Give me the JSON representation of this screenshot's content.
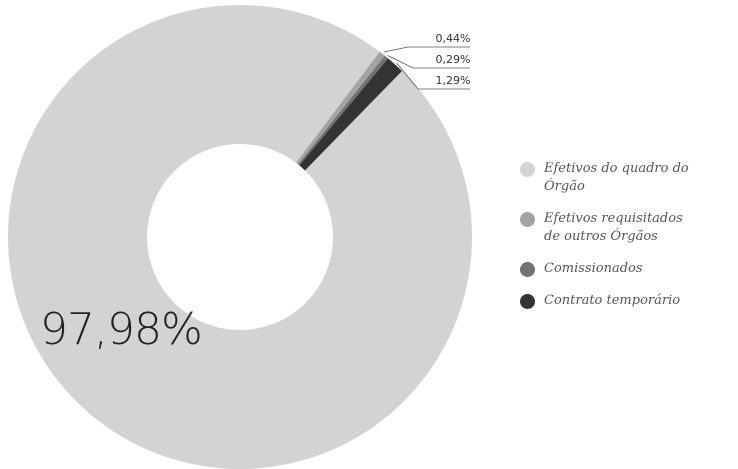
{
  "chart_data": {
    "type": "pie",
    "categories": [
      "Efetivos do quadro do Órgão",
      "Efetivos requisitados de outros Órgãos",
      "Comissionados",
      "Contrato temporário"
    ],
    "values": [
      97.98,
      0.44,
      0.29,
      1.29
    ],
    "value_labels": [
      "97,98%",
      "0,44%",
      "0,29%",
      "1,29%"
    ],
    "colors": [
      "#d3d3d3",
      "#a3a3a3",
      "#727272",
      "#333333"
    ],
    "legend": "right"
  }
}
